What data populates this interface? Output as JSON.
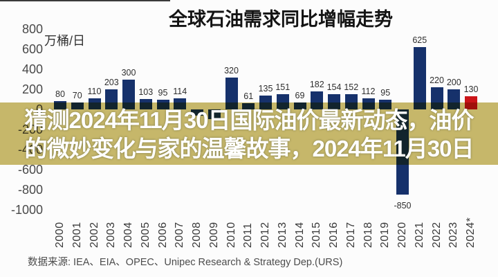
{
  "chart_data": {
    "type": "bar",
    "title": "全球石油需求同比增幅走势",
    "unit_label": "万桶/日",
    "ylabel": "万桶/日",
    "ylim": [
      -1000,
      800
    ],
    "yticks": [
      800,
      600,
      400,
      200,
      0,
      -200,
      -400,
      -600,
      -800,
      -1000
    ],
    "grid": false,
    "legend": false,
    "bar_color": "#16316b",
    "highlight_color": "#cb1418",
    "points": [
      {
        "year": "2000",
        "value": 80,
        "label": "80"
      },
      {
        "year": "2001",
        "value": 70,
        "label": "70"
      },
      {
        "year": "2002",
        "value": 110,
        "label": "110"
      },
      {
        "year": "2003",
        "value": 203,
        "label": "203"
      },
      {
        "year": "2004",
        "value": 300,
        "label": "300"
      },
      {
        "year": "2005",
        "value": 103,
        "label": "103"
      },
      {
        "year": "2006",
        "value": 95,
        "label": "95"
      },
      {
        "year": "2007",
        "value": 114,
        "label": "114"
      },
      {
        "year": "2008",
        "value": -60,
        "label": "",
        "estimated": true,
        "label_hidden_by_overlay": true
      },
      {
        "year": "2009",
        "value": -100,
        "label": "",
        "estimated": true,
        "label_hidden_by_overlay": true
      },
      {
        "year": "2010",
        "value": 320,
        "label": "320"
      },
      {
        "year": "2011",
        "value": 61,
        "label": "61"
      },
      {
        "year": "2012",
        "value": 135,
        "label": "135"
      },
      {
        "year": "2013",
        "value": 151,
        "label": "151"
      },
      {
        "year": "2014",
        "value": 69,
        "label": "69"
      },
      {
        "year": "2015",
        "value": 182,
        "label": "182"
      },
      {
        "year": "2016",
        "value": 154,
        "label": "154"
      },
      {
        "year": "2017",
        "value": 152,
        "label": "152"
      },
      {
        "year": "2018",
        "value": 112,
        "label": "112"
      },
      {
        "year": "2019",
        "value": 95,
        "label": "95"
      },
      {
        "year": "2020",
        "value": -850,
        "label": "-850"
      },
      {
        "year": "2021",
        "value": 625,
        "label": "625"
      },
      {
        "year": "2022",
        "value": 220,
        "label": "220"
      },
      {
        "year": "2023",
        "value": 200,
        "label": "200"
      },
      {
        "year": "2024*",
        "value": 130,
        "label": "130",
        "highlight": true
      }
    ],
    "source": "数据来源: IEA、EIA、OPEC、Unipec Research & Strategy Dep.(URS)"
  },
  "overlay": {
    "line1": "猜测2024年11月30日国际油价最新动态，油价",
    "line2": "的微妙变化与家的温馨故事，2024年11月30日",
    "band_color": "#c9b96b",
    "text_color": "#ffffff"
  }
}
